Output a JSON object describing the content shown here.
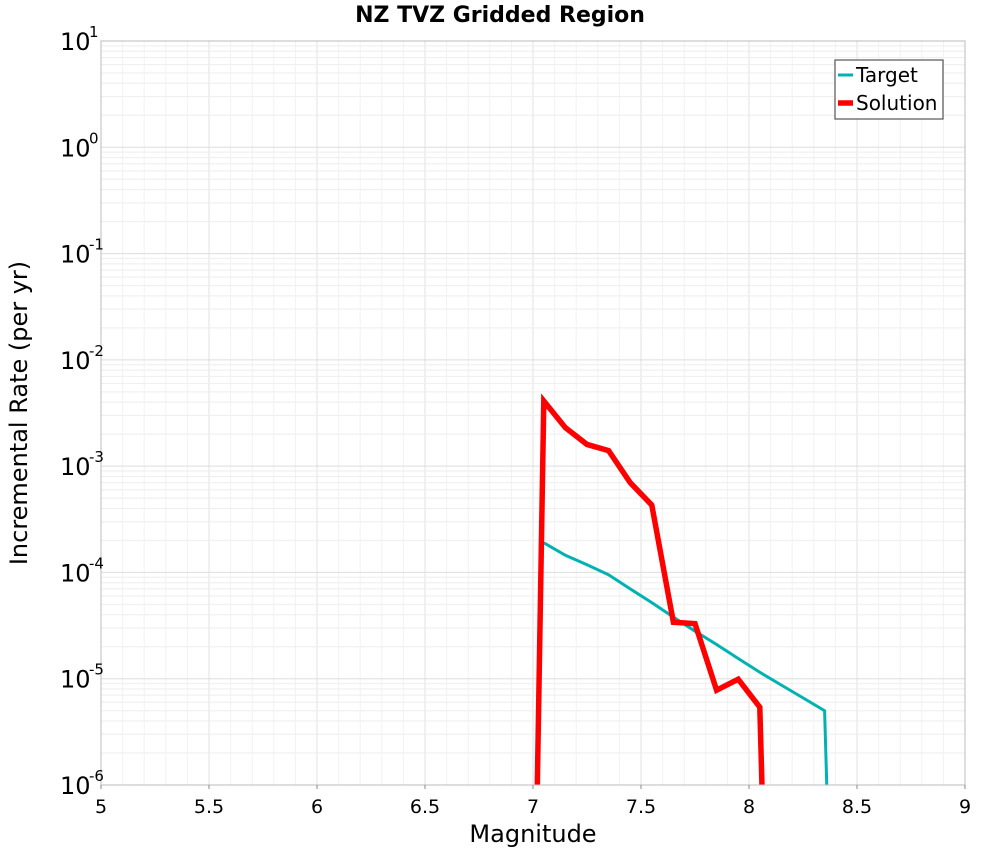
{
  "chart_data": {
    "type": "line",
    "title": "NZ TVZ Gridded Region",
    "xlabel": "Magnitude",
    "ylabel": "Incremental Rate (per yr)",
    "xlim": [
      5,
      9
    ],
    "ylim": [
      1e-06,
      10
    ],
    "yscale": "log",
    "grid": true,
    "legend": "top-right",
    "x_ticks": [
      "5",
      "5.5",
      "6",
      "6.5",
      "7",
      "7.5",
      "8",
      "8.5",
      "9"
    ],
    "y_ticks": [
      {
        "value": 1e-06,
        "base": "10",
        "exp": "-6"
      },
      {
        "value": 1e-05,
        "base": "10",
        "exp": "-5"
      },
      {
        "value": 0.0001,
        "base": "10",
        "exp": "-4"
      },
      {
        "value": 0.001,
        "base": "10",
        "exp": "-3"
      },
      {
        "value": 0.01,
        "base": "10",
        "exp": "-2"
      },
      {
        "value": 0.1,
        "base": "10",
        "exp": "-1"
      },
      {
        "value": 1,
        "base": "10",
        "exp": "0"
      },
      {
        "value": 10,
        "base": "10",
        "exp": "1"
      }
    ],
    "series": [
      {
        "name": "Target",
        "color": "#00b2b2",
        "x": [
          7.05,
          7.15,
          7.25,
          7.35,
          7.45,
          7.55,
          7.65,
          7.75,
          7.85,
          7.95,
          8.05,
          8.15,
          8.25,
          8.35,
          8.36
        ],
        "y": [
          0.00019,
          0.000145,
          0.000118,
          9.5e-05,
          7e-05,
          5.2e-05,
          3.8e-05,
          2.8e-05,
          2.1e-05,
          1.55e-05,
          1.15e-05,
          8.7e-06,
          6.6e-06,
          5e-06,
          8e-07
        ]
      },
      {
        "name": "Solution",
        "color": "#ff0000",
        "x": [
          7.02,
          7.05,
          7.15,
          7.25,
          7.35,
          7.45,
          7.55,
          7.65,
          7.75,
          7.85,
          7.95,
          8.05,
          8.06
        ],
        "y": [
          8e-07,
          0.0041,
          0.0023,
          0.0016,
          0.0014,
          0.0007,
          0.00043,
          3.4e-05,
          3.3e-05,
          7.8e-06,
          9.9e-06,
          5.4e-06,
          8e-07
        ]
      }
    ]
  }
}
